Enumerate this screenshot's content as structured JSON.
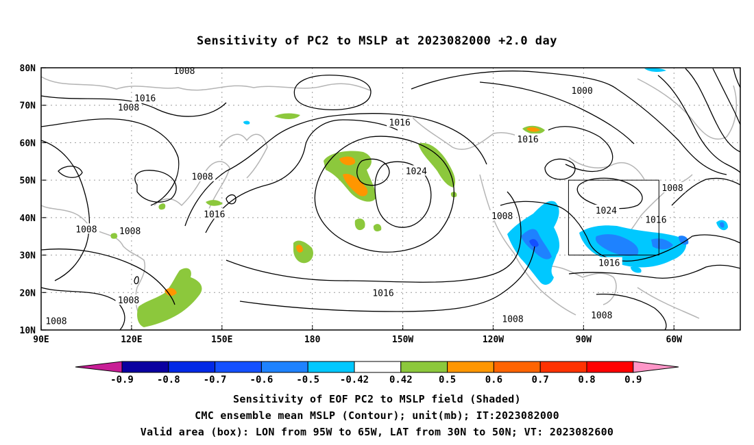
{
  "title": "Sensitivity of PC2 to MSLP at 2023082000 +2.0 day",
  "lat_axis": [
    "80N",
    "70N",
    "60N",
    "50N",
    "40N",
    "30N",
    "20N",
    "10N"
  ],
  "lon_axis": [
    "90E",
    "120E",
    "150E",
    "180",
    "150W",
    "120W",
    "90W",
    "60W"
  ],
  "contour_labels": [
    {
      "text": "1008",
      "lon": 137.5,
      "lat": 79.3
    },
    {
      "text": "1016",
      "lon": 124.5,
      "lat": 72.0
    },
    {
      "text": "1008",
      "lon": 119.0,
      "lat": 69.5
    },
    {
      "text": "1016",
      "lon": -151.0,
      "lat": 65.5
    },
    {
      "text": "1008",
      "lon": 143.5,
      "lat": 51.0
    },
    {
      "text": "1024",
      "lon": -145.5,
      "lat": 52.5
    },
    {
      "text": "1016",
      "lon": 147.5,
      "lat": 41.0
    },
    {
      "text": "1008",
      "lon": 105.0,
      "lat": 37.0
    },
    {
      "text": "1008",
      "lon": 119.5,
      "lat": 36.5
    },
    {
      "text": "1008",
      "lon": 119.0,
      "lat": 18.0
    },
    {
      "text": "1008",
      "lon": 95.0,
      "lat": 12.5
    },
    {
      "text": "1016",
      "lon": -156.5,
      "lat": 20.0
    },
    {
      "text": "1008",
      "lon": -117.0,
      "lat": 40.5
    },
    {
      "text": "1008",
      "lon": -113.5,
      "lat": 13.0
    },
    {
      "text": "1016",
      "lon": -108.5,
      "lat": 61.0
    },
    {
      "text": "1000",
      "lon": -90.5,
      "lat": 74.0
    },
    {
      "text": "1024",
      "lon": -82.5,
      "lat": 42.0
    },
    {
      "text": "1008",
      "lon": -60.5,
      "lat": 48.0
    },
    {
      "text": "1016",
      "lon": -66.0,
      "lat": 39.5
    },
    {
      "text": "1016",
      "lon": -81.5,
      "lat": 28.0
    },
    {
      "text": "1008",
      "lon": -84.0,
      "lat": 14.0
    }
  ],
  "colorbar": {
    "labels": [
      "-0.9",
      "-0.8",
      "-0.7",
      "-0.6",
      "-0.5",
      "-0.42",
      "0.42",
      "0.5",
      "0.6",
      "0.7",
      "0.8",
      "0.9"
    ],
    "colors": [
      "#0a00a0",
      "#0028e6",
      "#1450ff",
      "#1e82ff",
      "#00c8ff",
      "#ffffff",
      "#8cc83c",
      "#ff9600",
      "#ff6400",
      "#ff3200",
      "#ff0000"
    ],
    "low_arrow_color": "#c81e96",
    "high_arrow_color": "#ff96c8"
  },
  "box": {
    "lon_min": -95,
    "lon_max": -65,
    "lat_min": 30,
    "lat_max": 50
  },
  "footer": {
    "line1": "Sensitivity of EOF PC2 to MSLP field (Shaded)",
    "line2": "CMC ensemble mean MSLP (Contour); unit(mb); IT:2023082000",
    "line3": "Valid area (box): LON from 95W to 65W, LAT from 30N to 50N; VT: 2023082600"
  }
}
